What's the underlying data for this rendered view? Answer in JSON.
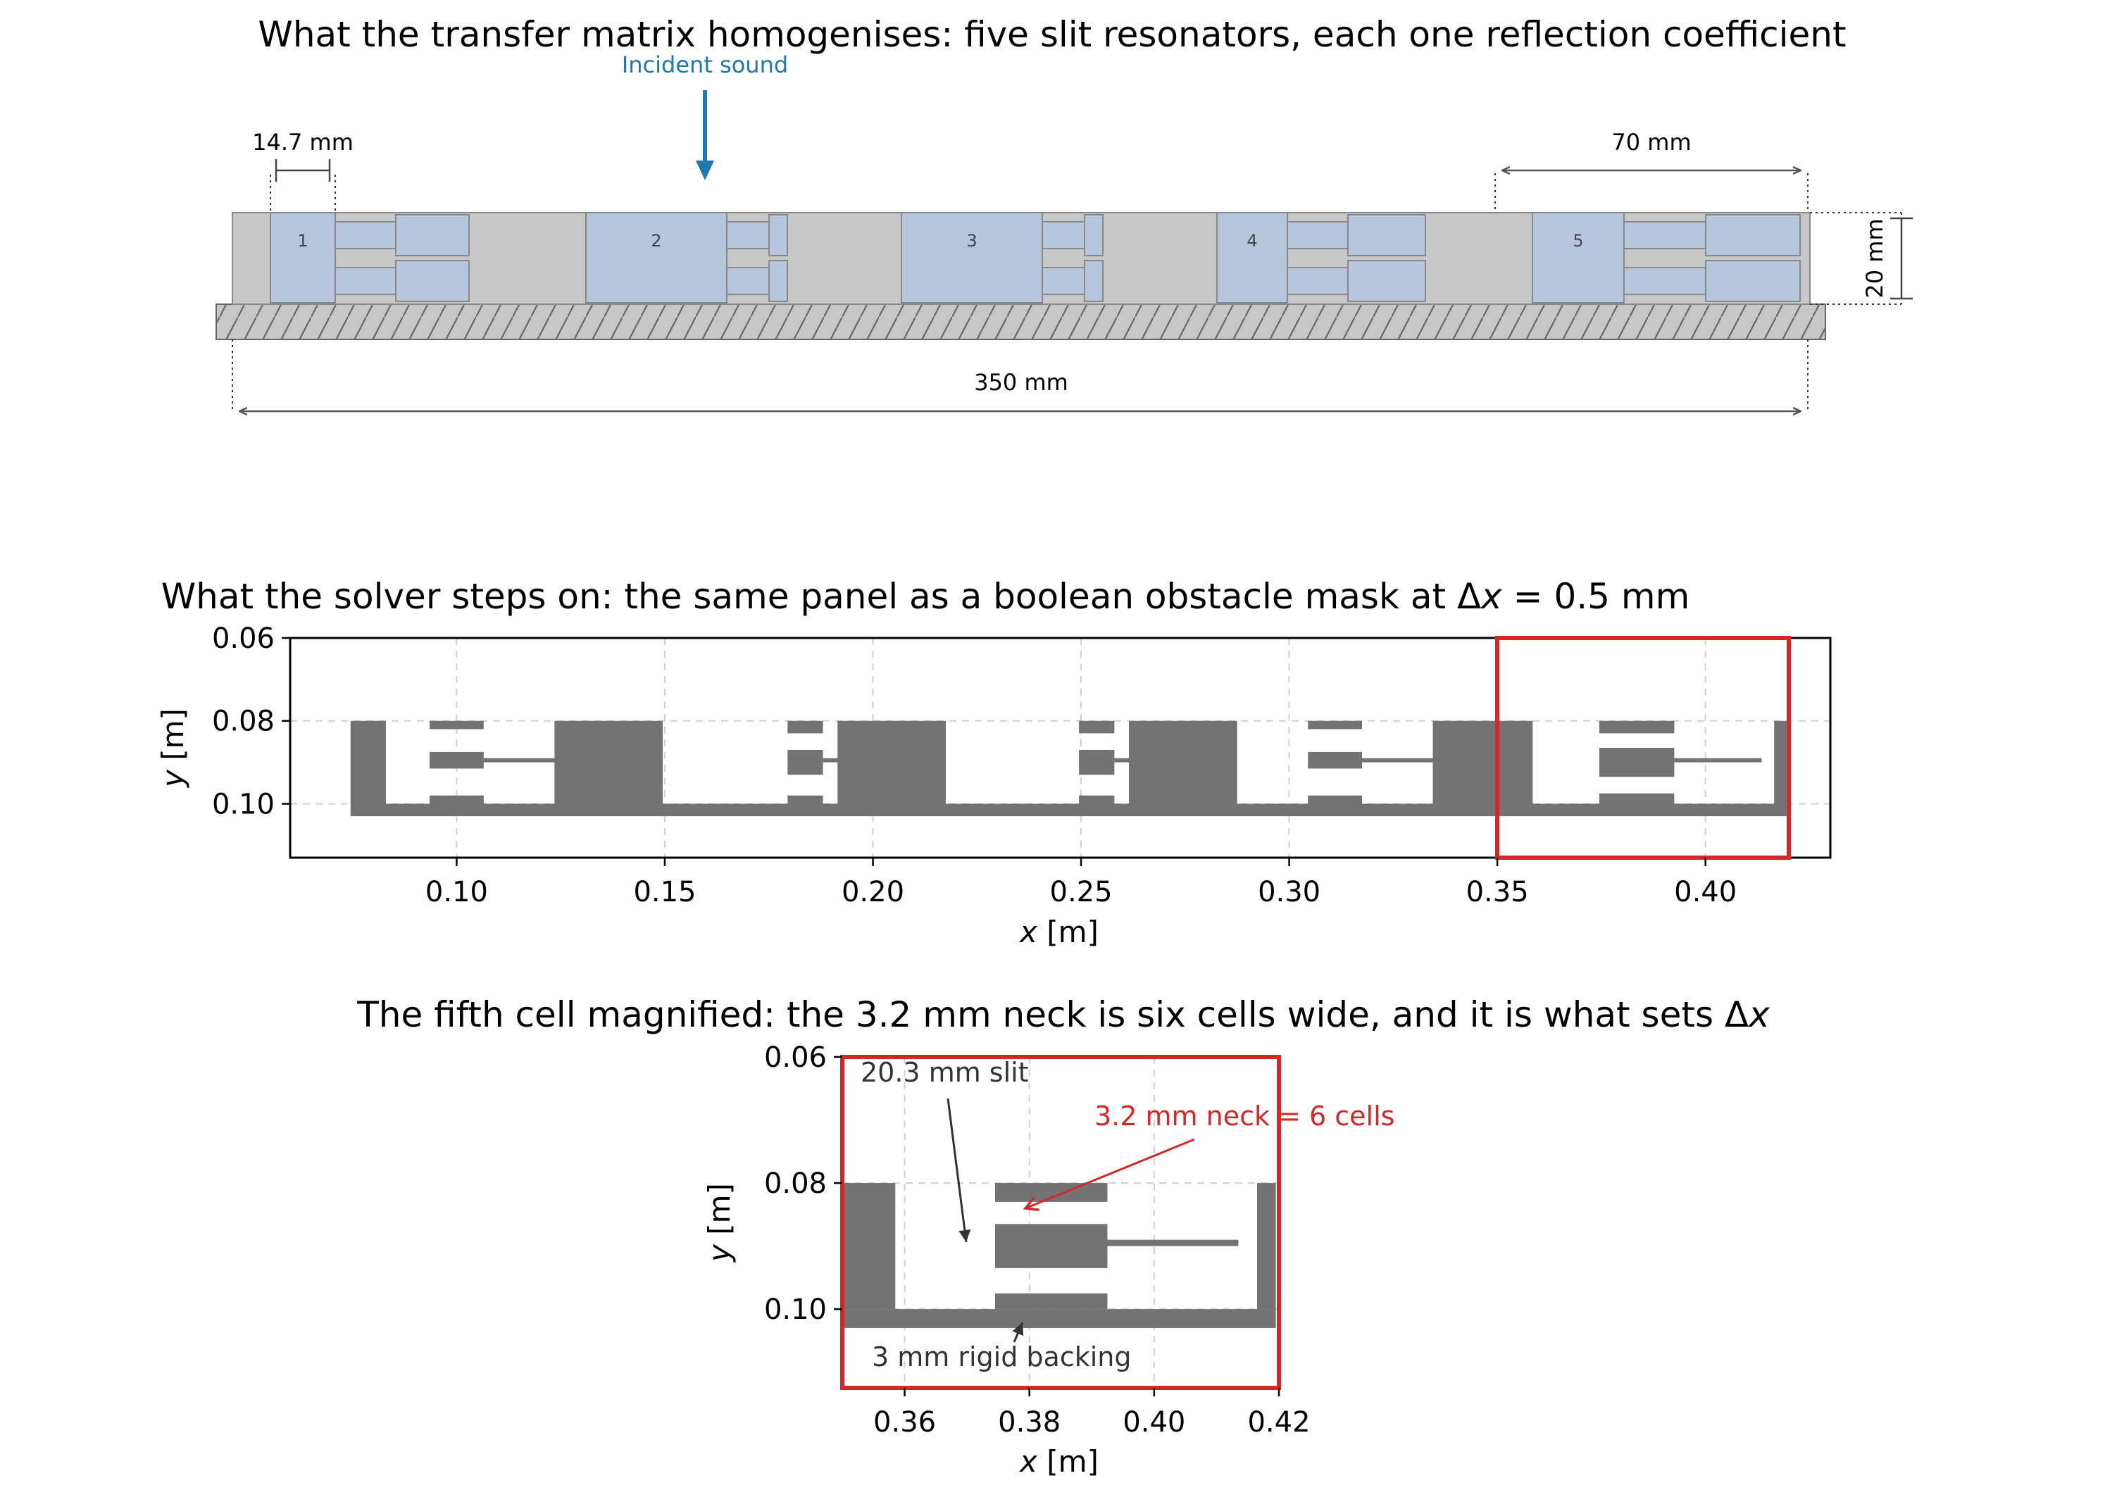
{
  "panel_a": {
    "title": "What the transfer matrix homogenises: five slit resonators, each one reflection coefficient",
    "incident_label": "Incident sound",
    "dim_slit": "14.7 mm",
    "dim_period": "70 mm",
    "dim_height": "20 mm",
    "dim_length": "350 mm",
    "cells": [
      "1",
      "2",
      "3",
      "4",
      "5"
    ]
  },
  "panel_b": {
    "title_prefix": "What the solver steps on: the same panel as a boolean obstacle mask at Δ",
    "title_var": "x",
    "title_suffix": " = 0.5 mm",
    "xlabel_var": "x",
    "xlabel_unit": " [m]",
    "ylabel_var": "y",
    "ylabel_unit": " [m]",
    "xticks": [
      "0.10",
      "0.15",
      "0.20",
      "0.25",
      "0.30",
      "0.35",
      "0.40"
    ],
    "yticks": [
      "0.06",
      "0.08",
      "0.10"
    ]
  },
  "panel_c": {
    "title_prefix": "The fifth cell magnified: the 3.2 mm neck is six cells wide, and it is what sets Δ",
    "title_var": "x",
    "xlabel_var": "x",
    "xlabel_unit": " [m]",
    "ylabel_var": "y",
    "ylabel_unit": " [m]",
    "xticks": [
      "0.36",
      "0.38",
      "0.40",
      "0.42"
    ],
    "yticks": [
      "0.06",
      "0.08",
      "0.10"
    ],
    "annot_slit": "20.3 mm slit",
    "annot_neck": "3.2 mm neck = 6 cells",
    "annot_backing": "3 mm rigid backing"
  },
  "colors": {
    "solid": "#737373",
    "frame": "#c7c7c7",
    "cavity": "#b6c6dd",
    "highlight": "#d62728",
    "incident": "#1f77b4"
  }
}
